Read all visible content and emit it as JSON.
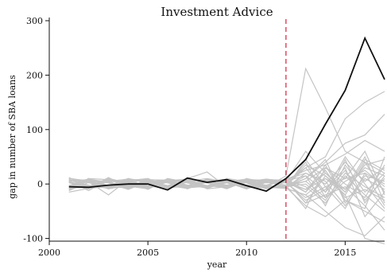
{
  "chart_data": {
    "type": "line",
    "title": "Investment Advice",
    "xlabel": "year",
    "ylabel": "gap in number of SBA loans",
    "xlim": [
      2000,
      2017
    ],
    "ylim": [
      -105,
      300
    ],
    "xticks": [
      2000,
      2005,
      2010,
      2015
    ],
    "yticks": [
      -100,
      0,
      100,
      200,
      300
    ],
    "treatment_year": 2012,
    "treatment_line_color": "#c8102e",
    "x": [
      2001,
      2002,
      2003,
      2004,
      2005,
      2006,
      2007,
      2008,
      2009,
      2010,
      2011,
      2012,
      2013,
      2014,
      2015,
      2016,
      2017
    ],
    "treated_series": {
      "color": "#111111",
      "values": [
        -5,
        -6,
        -2,
        0,
        0,
        -11,
        11,
        3,
        8,
        -3,
        -13,
        10,
        45,
        110,
        172,
        268,
        192
      ]
    },
    "placebo_color": "#c4c4c4",
    "placebo_series": [
      [
        -8,
        10,
        -5,
        6,
        -3,
        7,
        -6,
        4,
        9,
        -2,
        5,
        -3,
        30,
        50,
        120,
        150,
        170
      ],
      [
        5,
        -12,
        8,
        -4,
        6,
        -5,
        3,
        -8,
        4,
        7,
        -6,
        15,
        212,
        140,
        60,
        40,
        20
      ],
      [
        -3,
        4,
        -20,
        8,
        -5,
        3,
        8,
        -4,
        2,
        -6,
        9,
        -4,
        10,
        40,
        75,
        90,
        128
      ],
      [
        10,
        6,
        -7,
        3,
        8,
        -9,
        5,
        7,
        -3,
        4,
        -2,
        8,
        25,
        35,
        55,
        80,
        60
      ],
      [
        -15,
        -8,
        12,
        -6,
        4,
        6,
        -3,
        5,
        -7,
        3,
        6,
        -6,
        -40,
        -60,
        -30,
        -50,
        -70
      ],
      [
        6,
        3,
        -4,
        10,
        -8,
        4,
        -5,
        -3,
        6,
        -9,
        3,
        5,
        60,
        20,
        -10,
        30,
        15
      ],
      [
        -6,
        9,
        3,
        -5,
        7,
        -4,
        10,
        22,
        -6,
        5,
        -4,
        -8,
        -20,
        -50,
        -80,
        -95,
        -60
      ],
      [
        3,
        -5,
        7,
        4,
        -10,
        8,
        -6,
        3,
        -4,
        8,
        7,
        3,
        -10,
        10,
        -20,
        -100,
        -110
      ],
      [
        8,
        -3,
        -6,
        9,
        2,
        -7,
        4,
        -5,
        10,
        -3,
        -8,
        -5,
        15,
        -15,
        25,
        -30,
        10
      ],
      [
        -10,
        7,
        5,
        -8,
        6,
        3,
        -9,
        6,
        -2,
        6,
        4,
        2,
        -25,
        -5,
        -45,
        20,
        -40
      ],
      [
        4,
        -9,
        10,
        2,
        -6,
        9,
        2,
        -8,
        5,
        -4,
        -5,
        -3,
        5,
        30,
        10,
        60,
        -20
      ],
      [
        -4,
        5,
        -9,
        7,
        9,
        -6,
        7,
        4,
        -8,
        10,
        2,
        6,
        -35,
        -20,
        -5,
        -40,
        -85
      ],
      [
        12,
        -6,
        4,
        -9,
        3,
        5,
        -8,
        9,
        3,
        -7,
        6,
        -7,
        20,
        0,
        40,
        5,
        30
      ],
      [
        -7,
        8,
        -3,
        5,
        -9,
        10,
        3,
        -6,
        7,
        2,
        -9,
        4,
        -15,
        25,
        -25,
        -10,
        -30
      ],
      [
        2,
        -4,
        9,
        -7,
        5,
        -3,
        8,
        2,
        -9,
        6,
        3,
        -2,
        35,
        15,
        -15,
        45,
        25
      ],
      [
        -12,
        3,
        6,
        4,
        -4,
        -8,
        5,
        10,
        4,
        -8,
        8,
        7,
        -5,
        -35,
        15,
        -20,
        -50
      ],
      [
        9,
        -8,
        -5,
        8,
        7,
        2,
        -7,
        -4,
        8,
        3,
        -5,
        -6,
        10,
        45,
        -35,
        15,
        5
      ],
      [
        -5,
        10,
        8,
        -3,
        -7,
        6,
        9,
        -9,
        -5,
        9,
        5,
        3,
        -30,
        -10,
        30,
        -60,
        -15
      ],
      [
        7,
        -2,
        -8,
        6,
        10,
        -5,
        -4,
        8,
        6,
        -6,
        -7,
        -4,
        40,
        -25,
        5,
        25,
        -5
      ],
      [
        -9,
        6,
        2,
        -10,
        4,
        8,
        -2,
        -7,
        10,
        4,
        9,
        5,
        -10,
        20,
        -15,
        35,
        45
      ],
      [
        4,
        -7,
        6,
        3,
        -3,
        -6,
        7,
        5,
        -6,
        8,
        -3,
        -5,
        0,
        -30,
        20,
        -5,
        -25
      ],
      [
        -3,
        9,
        -4,
        8,
        6,
        -3,
        -8,
        6,
        5,
        -5,
        4,
        8,
        20,
        5,
        -40,
        10,
        -10
      ],
      [
        11,
        4,
        -7,
        -5,
        8,
        7,
        6,
        -3,
        -7,
        7,
        -8,
        -3,
        -45,
        30,
        0,
        -25,
        35
      ],
      [
        -8,
        -5,
        5,
        9,
        -6,
        4,
        -5,
        9,
        3,
        -9,
        7,
        6,
        15,
        -40,
        35,
        -15,
        20
      ],
      [
        6,
        8,
        -9,
        -2,
        5,
        -8,
        9,
        -5,
        8,
        2,
        -6,
        -8,
        -20,
        10,
        -10,
        50,
        -35
      ],
      [
        -2,
        -9,
        7,
        5,
        -8,
        6,
        -3,
        7,
        -5,
        6,
        8,
        4,
        30,
        -15,
        50,
        0,
        -45
      ],
      [
        10,
        2,
        -3,
        -8,
        9,
        -4,
        6,
        -6,
        7,
        -4,
        -4,
        9,
        -15,
        35,
        -30,
        -45,
        50
      ],
      [
        -11,
        7,
        4,
        6,
        -5,
        9,
        -7,
        4,
        -8,
        5,
        6,
        -7,
        45,
        -5,
        10,
        20,
        0
      ],
      [
        5,
        -6,
        9,
        -4,
        -9,
        5,
        8,
        -8,
        6,
        -7,
        3,
        6,
        -35,
        15,
        -20,
        40,
        -15
      ],
      [
        -6,
        5,
        -8,
        10,
        3,
        -7,
        -4,
        8,
        4,
        9,
        -7,
        -5,
        5,
        -25,
        45,
        -35,
        15
      ]
    ]
  }
}
